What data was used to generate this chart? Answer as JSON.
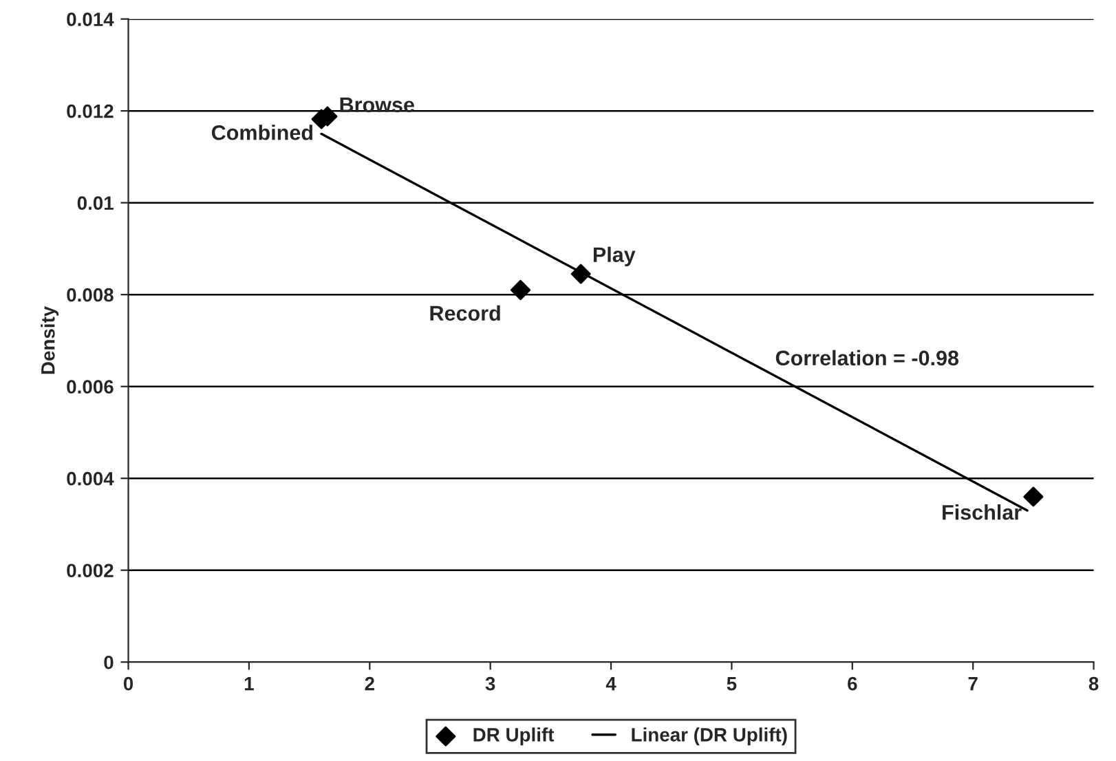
{
  "chart_data": {
    "type": "scatter",
    "ylabel": "Density",
    "series": [
      {
        "name": "DR Uplift",
        "color": "#000000",
        "marker": "diamond",
        "x": [
          1.6,
          1.65,
          3.25,
          3.75,
          7.5
        ],
        "values": [
          0.01182,
          0.01188,
          0.0081,
          0.00845,
          0.0036
        ]
      },
      {
        "name": "Linear (DR Uplift)",
        "type": "line",
        "color": "#000000",
        "marker": "none",
        "line_style": "solid",
        "x": [
          1.6,
          7.45
        ],
        "values": [
          0.0115,
          0.0033
        ]
      }
    ],
    "annotations": [
      {
        "text": "Browse",
        "x": 1.65,
        "y": 0.01188
      },
      {
        "text": "Combined",
        "x": 1.6,
        "y": 0.01182
      },
      {
        "text": "Play",
        "x": 3.75,
        "y": 0.00845
      },
      {
        "text": "Record",
        "x": 3.25,
        "y": 0.0081
      },
      {
        "text": "Fischlar",
        "x": 7.5,
        "y": 0.0036
      },
      "Correlation = -0.98"
    ],
    "xlim": [
      0,
      8
    ],
    "xticks": [
      0,
      1,
      2,
      3,
      4,
      5,
      6,
      7,
      8
    ],
    "ylim": [
      0,
      0.014
    ],
    "yticks": [
      0,
      0.002,
      0.004,
      0.006,
      0.008,
      0.01,
      0.012,
      0.014
    ],
    "grid": "y",
    "legend": "bottom"
  }
}
